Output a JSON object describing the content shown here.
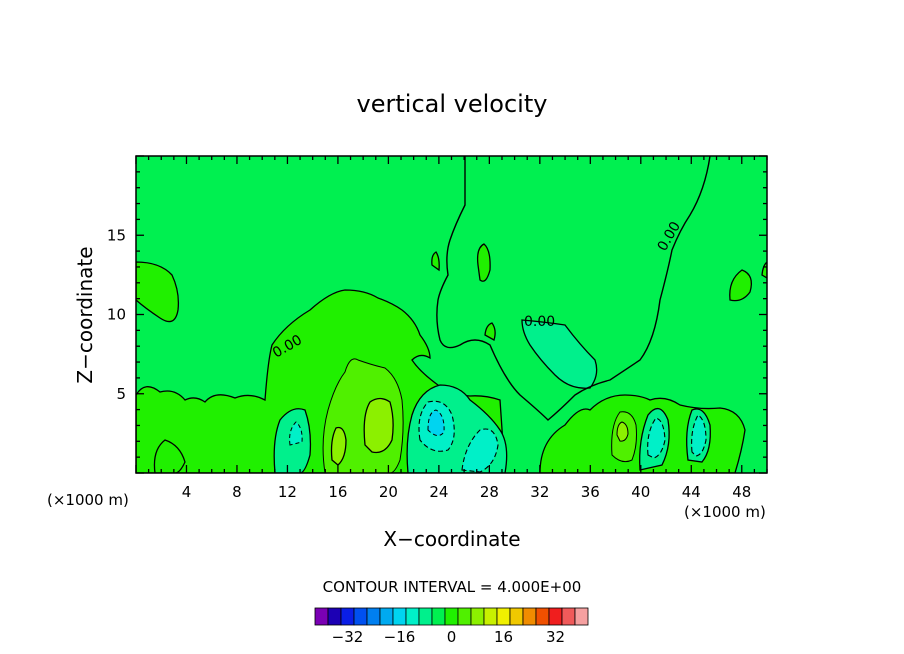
{
  "chart_data": {
    "type": "contour",
    "title": "vertical velocity",
    "xlabel": "X−coordinate",
    "ylabel": "Z−coordinate",
    "x_unit_left": "(×1000 m)",
    "x_unit_right": "(×1000 m)",
    "xlim": [
      0,
      50
    ],
    "ylim": [
      0,
      20
    ],
    "x_ticks": [
      4,
      8,
      12,
      16,
      20,
      24,
      28,
      32,
      36,
      40,
      44,
      48
    ],
    "y_ticks": [
      5,
      10,
      15
    ],
    "contour_interval_label": "CONTOUR INTERVAL = 4.000E+00",
    "contour_interval": 4,
    "contour_labels": [
      "0.00",
      "0.00",
      "0.00"
    ],
    "colorbar": {
      "min": -40,
      "max": 40,
      "step": 4,
      "tick_values": [
        -32,
        -16,
        0,
        16,
        32
      ],
      "tick_labels": [
        "−32",
        "−16",
        "0",
        "16",
        "32"
      ],
      "colors": [
        "#7a00b4",
        "#1c00b4",
        "#0a1ee6",
        "#0050f0",
        "#007ff0",
        "#00aaf0",
        "#00d4f0",
        "#00f0c8",
        "#00f08c",
        "#00f050",
        "#20f000",
        "#50f000",
        "#8cf000",
        "#c8f000",
        "#f0f000",
        "#f0c800",
        "#f08c00",
        "#f05000",
        "#f01e1e",
        "#f05a5a",
        "#f5a0a0"
      ]
    },
    "regions": [
      {
        "level": "0 to 4",
        "color": "#00f050",
        "note": "background"
      },
      {
        "level": "4 to 8",
        "color": "#20f000"
      },
      {
        "level": "8 to 12",
        "color": "#50f000"
      },
      {
        "level": "12 to 16",
        "color": "#8cf000"
      },
      {
        "level": "-4 to 0",
        "color": "#00f08c"
      },
      {
        "level": "-8 to -4",
        "color": "#00f0c8"
      },
      {
        "level": "-12 to -8",
        "color": "#00d4f0"
      }
    ]
  }
}
